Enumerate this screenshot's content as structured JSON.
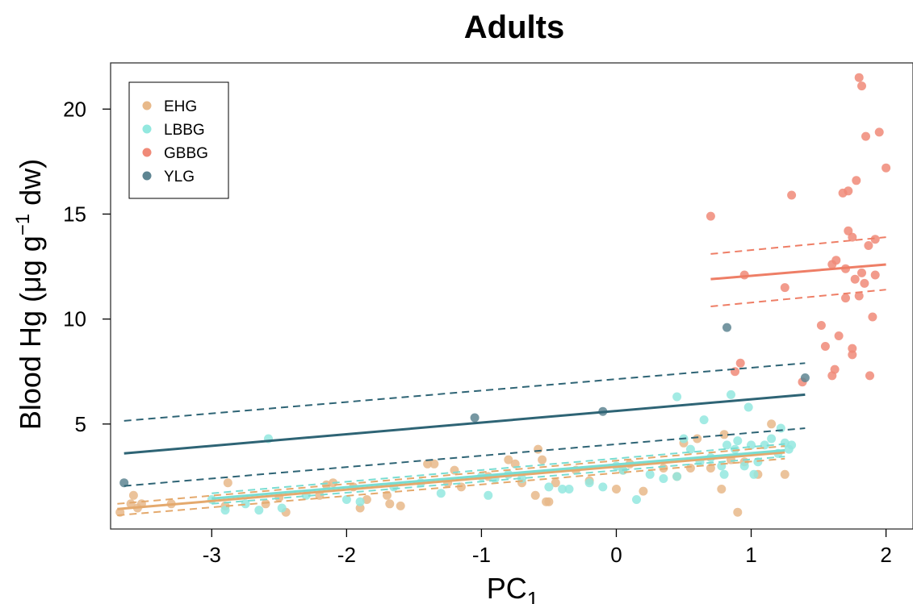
{
  "chart_data": {
    "type": "scatter",
    "title": "Adults",
    "xlabel_main": "PC",
    "xlabel_sub": "1",
    "ylabel_main": "Blood Hg (μg g",
    "ylabel_sup": "−1",
    "ylabel_tail": " dw)",
    "xlim": [
      -3.75,
      2.2
    ],
    "ylim": [
      0,
      22.2
    ],
    "xticks": [
      -3,
      -2,
      -1,
      0,
      1,
      2
    ],
    "xtick_labels": [
      "-3",
      "-2",
      "-1",
      "0",
      "1",
      "2"
    ],
    "yticks": [
      5,
      10,
      15,
      20
    ],
    "ytick_labels": [
      "5",
      "10",
      "15",
      "20"
    ],
    "grid": false,
    "legend_position": "top-left",
    "series": [
      {
        "name": "EHG",
        "color": "#e8b98a",
        "points": [
          [
            -3.68,
            0.8
          ],
          [
            -3.6,
            1.2
          ],
          [
            -3.58,
            1.6
          ],
          [
            -3.55,
            1.0
          ],
          [
            -3.52,
            1.2
          ],
          [
            -3.3,
            1.2
          ],
          [
            -2.9,
            1.1
          ],
          [
            -2.88,
            2.2
          ],
          [
            -2.6,
            1.2
          ],
          [
            -2.5,
            1.5
          ],
          [
            -2.45,
            0.8
          ],
          [
            -2.2,
            1.6
          ],
          [
            -2.15,
            2.1
          ],
          [
            -2.1,
            2.2
          ],
          [
            -1.95,
            2.0
          ],
          [
            -1.9,
            1.0
          ],
          [
            -1.85,
            1.4
          ],
          [
            -1.7,
            1.6
          ],
          [
            -1.68,
            1.2
          ],
          [
            -1.6,
            1.1
          ],
          [
            -1.4,
            3.1
          ],
          [
            -1.35,
            3.1
          ],
          [
            -1.25,
            2.2
          ],
          [
            -1.2,
            2.8
          ],
          [
            -1.15,
            2.0
          ],
          [
            -0.95,
            2.5
          ],
          [
            -0.8,
            3.3
          ],
          [
            -0.75,
            3.1
          ],
          [
            -0.7,
            2.2
          ],
          [
            -0.6,
            1.6
          ],
          [
            -0.58,
            3.8
          ],
          [
            -0.55,
            3.3
          ],
          [
            -0.52,
            1.3
          ],
          [
            -0.5,
            1.3
          ],
          [
            -0.45,
            2.2
          ],
          [
            -0.3,
            2.8
          ],
          [
            -0.2,
            2.3
          ],
          [
            0.0,
            1.9
          ],
          [
            0.05,
            2.8
          ],
          [
            0.1,
            3.1
          ],
          [
            0.2,
            1.8
          ],
          [
            0.35,
            2.9
          ],
          [
            0.45,
            2.5
          ],
          [
            0.5,
            4.1
          ],
          [
            0.55,
            2.9
          ],
          [
            0.6,
            4.3
          ],
          [
            0.7,
            2.9
          ],
          [
            0.78,
            1.9
          ],
          [
            0.8,
            4.5
          ],
          [
            0.85,
            3.3
          ],
          [
            0.9,
            0.8
          ],
          [
            0.95,
            3.2
          ],
          [
            1.05,
            2.6
          ],
          [
            1.15,
            5.0
          ],
          [
            1.25,
            2.6
          ]
        ]
      },
      {
        "name": "LBBG",
        "color": "#93e8df",
        "points": [
          [
            -3.0,
            1.4
          ],
          [
            -2.9,
            0.9
          ],
          [
            -2.75,
            1.2
          ],
          [
            -2.65,
            0.9
          ],
          [
            -2.58,
            4.3
          ],
          [
            -2.48,
            1.0
          ],
          [
            -2.3,
            1.6
          ],
          [
            -2.0,
            1.4
          ],
          [
            -1.9,
            1.3
          ],
          [
            -1.65,
            2.0
          ],
          [
            -1.45,
            2.2
          ],
          [
            -1.3,
            1.7
          ],
          [
            -1.0,
            2.5
          ],
          [
            -0.95,
            1.6
          ],
          [
            -0.9,
            2.4
          ],
          [
            -0.8,
            2.6
          ],
          [
            -0.7,
            2.4
          ],
          [
            -0.5,
            2.0
          ],
          [
            -0.4,
            1.9
          ],
          [
            -0.35,
            1.9
          ],
          [
            -0.2,
            2.2
          ],
          [
            -0.1,
            2.0
          ],
          [
            0.0,
            3.0
          ],
          [
            0.05,
            2.8
          ],
          [
            0.15,
            1.4
          ],
          [
            0.25,
            2.6
          ],
          [
            0.35,
            2.4
          ],
          [
            0.45,
            2.5
          ],
          [
            0.45,
            6.3
          ],
          [
            0.5,
            4.3
          ],
          [
            0.55,
            3.8
          ],
          [
            0.62,
            3.2
          ],
          [
            0.65,
            5.2
          ],
          [
            0.7,
            3.4
          ],
          [
            0.78,
            3.0
          ],
          [
            0.8,
            2.6
          ],
          [
            0.82,
            4.0
          ],
          [
            0.85,
            6.4
          ],
          [
            0.88,
            3.8
          ],
          [
            0.9,
            4.2
          ],
          [
            0.95,
            3.0
          ],
          [
            0.98,
            5.8
          ],
          [
            1.0,
            4.0
          ],
          [
            1.02,
            2.6
          ],
          [
            1.05,
            3.2
          ],
          [
            1.1,
            4.0
          ],
          [
            1.15,
            4.3
          ],
          [
            1.2,
            3.6
          ],
          [
            1.22,
            4.8
          ],
          [
            1.25,
            4.1
          ],
          [
            1.28,
            3.8
          ],
          [
            1.3,
            4.0
          ]
        ]
      },
      {
        "name": "GBBG",
        "color": "#f08a78",
        "points": [
          [
            0.7,
            14.9
          ],
          [
            0.88,
            7.5
          ],
          [
            0.92,
            7.9
          ],
          [
            0.95,
            12.1
          ],
          [
            1.25,
            11.5
          ],
          [
            1.3,
            15.9
          ],
          [
            1.38,
            7.0
          ],
          [
            1.52,
            9.7
          ],
          [
            1.55,
            8.7
          ],
          [
            1.6,
            12.6
          ],
          [
            1.6,
            7.3
          ],
          [
            1.62,
            7.6
          ],
          [
            1.63,
            12.8
          ],
          [
            1.65,
            9.2
          ],
          [
            1.68,
            16.0
          ],
          [
            1.7,
            11.0
          ],
          [
            1.7,
            12.4
          ],
          [
            1.72,
            16.1
          ],
          [
            1.72,
            14.2
          ],
          [
            1.75,
            13.9
          ],
          [
            1.75,
            8.6
          ],
          [
            1.75,
            8.3
          ],
          [
            1.77,
            11.9
          ],
          [
            1.78,
            16.6
          ],
          [
            1.8,
            21.5
          ],
          [
            1.8,
            11.1
          ],
          [
            1.82,
            12.2
          ],
          [
            1.82,
            21.1
          ],
          [
            1.84,
            11.7
          ],
          [
            1.85,
            18.7
          ],
          [
            1.87,
            13.5
          ],
          [
            1.88,
            7.3
          ],
          [
            1.9,
            10.1
          ],
          [
            1.92,
            13.8
          ],
          [
            1.92,
            12.1
          ],
          [
            1.95,
            18.9
          ],
          [
            2.0,
            17.2
          ]
        ]
      },
      {
        "name": "YLG",
        "color": "#5e8592",
        "points": [
          [
            -3.65,
            2.2
          ],
          [
            -1.05,
            5.3
          ],
          [
            -0.1,
            5.6
          ],
          [
            0.82,
            9.6
          ],
          [
            1.4,
            7.2
          ]
        ]
      }
    ],
    "fits": [
      {
        "series": "EHG",
        "color": "#e4a96d",
        "x": [
          -3.7,
          1.25
        ],
        "fit": [
          0.95,
          3.65
        ],
        "ci_upper": [
          1.2,
          3.95
        ],
        "ci_lower": [
          0.65,
          3.35
        ]
      },
      {
        "series": "LBBG",
        "color": "#79ddd2",
        "x": [
          -3.0,
          1.25
        ],
        "fit": [
          1.45,
          3.75
        ],
        "ci_upper": [
          1.7,
          4.05
        ],
        "ci_lower": [
          1.2,
          3.45
        ]
      },
      {
        "series": "YLG",
        "color": "#2e6475",
        "x": [
          -3.65,
          1.4
        ],
        "fit": [
          3.6,
          6.4
        ],
        "ci_upper": [
          5.15,
          7.9
        ],
        "ci_lower": [
          2.05,
          4.8
        ]
      },
      {
        "series": "GBBG",
        "color": "#ee7e66",
        "x": [
          0.7,
          2.0
        ],
        "fit": [
          11.9,
          12.6
        ],
        "ci_upper": [
          13.1,
          13.9
        ],
        "ci_lower": [
          10.6,
          11.4
        ]
      }
    ]
  }
}
